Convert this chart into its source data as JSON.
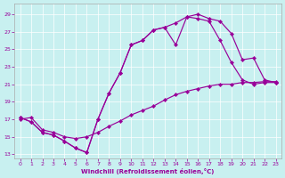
{
  "bg_color": "#c8f0f0",
  "line_color": "#990099",
  "xlabel": "Windchill (Refroidissement éolien,°C)",
  "xlim_min": -0.5,
  "xlim_max": 23.5,
  "ylim_min": 12.5,
  "ylim_max": 30.2,
  "yticks": [
    13,
    15,
    17,
    19,
    21,
    23,
    25,
    27,
    29
  ],
  "xticks": [
    0,
    1,
    2,
    3,
    4,
    5,
    6,
    7,
    8,
    9,
    10,
    11,
    12,
    13,
    14,
    15,
    16,
    17,
    18,
    19,
    20,
    21,
    22,
    23
  ],
  "curve1_x": [
    0,
    1,
    2,
    3,
    4,
    5,
    6,
    7,
    8,
    9,
    10,
    11,
    12,
    13,
    14,
    15,
    16,
    17,
    18,
    19,
    20,
    21,
    22,
    23
  ],
  "curve1_y": [
    17.2,
    16.7,
    15.5,
    15.2,
    14.5,
    13.7,
    13.2,
    17.0,
    20.0,
    22.3,
    25.5,
    26.0,
    27.2,
    27.5,
    28.0,
    28.7,
    29.0,
    28.5,
    28.2,
    26.8,
    23.8,
    24.0,
    21.5,
    21.2
  ],
  "curve2_x": [
    0,
    1,
    2,
    3,
    4,
    5,
    6,
    7,
    8,
    9,
    10,
    11,
    12,
    13,
    14,
    15,
    16,
    17,
    18,
    19,
    20,
    21,
    22,
    23
  ],
  "curve2_y": [
    17.2,
    16.7,
    15.5,
    15.2,
    14.5,
    13.7,
    13.2,
    17.0,
    20.0,
    22.3,
    25.5,
    26.0,
    27.2,
    27.5,
    25.5,
    28.7,
    28.5,
    28.2,
    26.0,
    23.5,
    21.5,
    21.0,
    21.2,
    21.2
  ],
  "curve3_x": [
    0,
    1,
    2,
    3,
    4,
    5,
    6,
    7,
    8,
    9,
    10,
    11,
    12,
    13,
    14,
    15,
    16,
    17,
    18,
    19,
    20,
    21,
    22,
    23
  ],
  "curve3_y": [
    17.0,
    17.2,
    15.8,
    15.5,
    15.0,
    14.8,
    15.0,
    15.5,
    16.2,
    16.8,
    17.5,
    18.0,
    18.5,
    19.2,
    19.8,
    20.2,
    20.5,
    20.8,
    21.0,
    21.0,
    21.2,
    21.2,
    21.3,
    21.3
  ]
}
